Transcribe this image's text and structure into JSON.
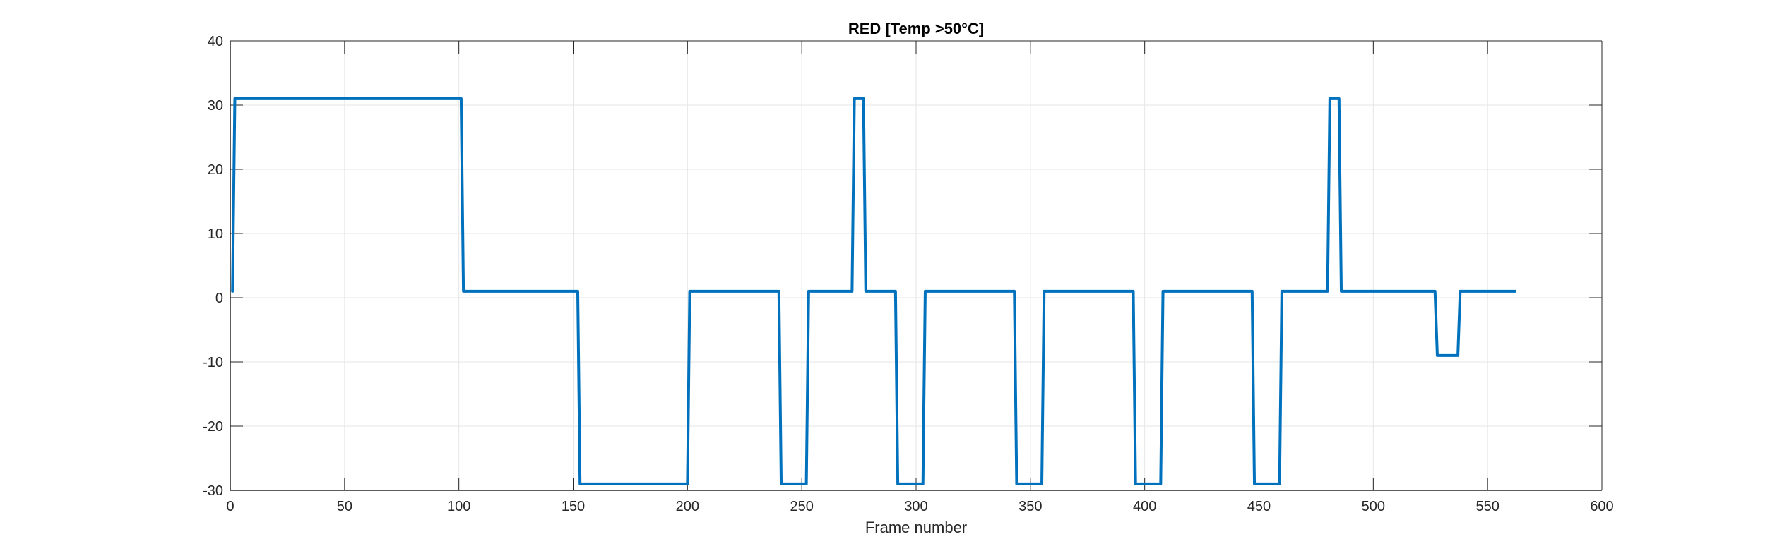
{
  "chart_data": {
    "type": "line",
    "title": "RED [Temp >50°C]",
    "xlabel": "Frame number",
    "ylabel": "",
    "xlim": [
      0,
      600
    ],
    "ylim": [
      -30,
      40
    ],
    "xticks": [
      "0",
      "50",
      "100",
      "150",
      "200",
      "250",
      "300",
      "350",
      "400",
      "450",
      "500",
      "550",
      "600"
    ],
    "yticks": [
      "40",
      "30",
      "20",
      "10",
      "0",
      "-10",
      "-20",
      "-30"
    ],
    "grid": true,
    "legend": "none",
    "series": [
      {
        "color": "#0072BD",
        "x": [
          1,
          2,
          101,
          102,
          152,
          153,
          200,
          201,
          240,
          241,
          252,
          253,
          272,
          273,
          277,
          278,
          291,
          292,
          303,
          304,
          343,
          344,
          355,
          356,
          395,
          396,
          407,
          408,
          447,
          448,
          459,
          460,
          480,
          481,
          485,
          486,
          527,
          528,
          537,
          538,
          562
        ],
        "y": [
          1,
          31,
          31,
          1,
          1,
          -29,
          -29,
          1,
          1,
          -29,
          -29,
          1,
          1,
          31,
          31,
          1,
          1,
          -29,
          -29,
          1,
          1,
          -29,
          -29,
          1,
          1,
          -29,
          -29,
          1,
          1,
          -29,
          -29,
          1,
          1,
          31,
          31,
          1,
          1,
          -9,
          -9,
          1,
          1
        ]
      }
    ]
  }
}
